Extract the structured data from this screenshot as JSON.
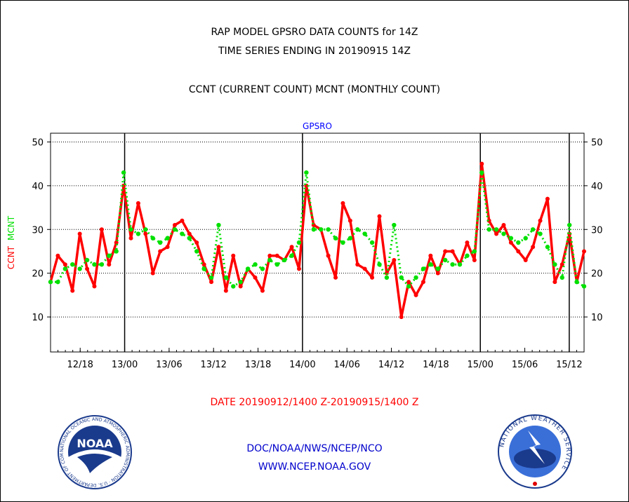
{
  "header": {
    "title_line1": "RAP MODEL GPSRO DATA COUNTS for 14Z",
    "title_line2": "TIME SERIES ENDING IN 20190915 14Z",
    "subtitle": "CCNT (CURRENT COUNT) MCNT (MONTHLY COUNT)"
  },
  "footer": {
    "date_range": "DATE 20190912/1400 Z-20190915/1400 Z",
    "org": "DOC/NOAA/NWS/NCEP/NCO",
    "url": "WWW.NCEP.NOAA.GOV"
  },
  "logos": {
    "left": {
      "icon": "noaa-logo",
      "text": "NOAA",
      "ring_text": "NATIONAL OCEANIC AND ATMOSPHERIC ADMINISTRATION · U.S. DEPARTMENT OF COMMERCE"
    },
    "right": {
      "icon": "nws-logo",
      "ring_text": "NATIONAL WEATHER SERVICE"
    }
  },
  "colors": {
    "ccnt": "#ff0000",
    "mcnt": "#00e000",
    "plot_title": "#0000ff",
    "footer_blue": "#0000cc",
    "date_red": "#ff0000"
  },
  "chart_data": {
    "type": "line",
    "title": "GPSRO",
    "ylabel_parts": [
      {
        "text": "CCNT",
        "series": "CCNT"
      },
      {
        "text": "MCNT",
        "series": "MCNT"
      }
    ],
    "ylim": [
      2,
      52
    ],
    "yticks": [
      10,
      20,
      30,
      40,
      50
    ],
    "grid": true,
    "xticks": [
      "12/18",
      "13/00",
      "13/06",
      "13/12",
      "13/18",
      "14/00",
      "14/06",
      "14/12",
      "14/18",
      "15/00",
      "15/06",
      "15/12"
    ],
    "xtick_hours": [
      4,
      10,
      16,
      22,
      28,
      34,
      40,
      46,
      52,
      58,
      64,
      70
    ],
    "day_boundaries_hours": [
      10,
      34,
      58,
      70
    ],
    "x_start_hour": 0,
    "x_end_hour": 72,
    "series": [
      {
        "name": "CCNT",
        "color": "#ff0000",
        "values": [
          18,
          24,
          22,
          16,
          29,
          21,
          17,
          30,
          22,
          27,
          40,
          28,
          36,
          29,
          20,
          25,
          26,
          31,
          32,
          29,
          27,
          22,
          18,
          26,
          16,
          24,
          17,
          21,
          19,
          16,
          24,
          24,
          23,
          26,
          21,
          40,
          31,
          30,
          24,
          19,
          36,
          32,
          22,
          21,
          19,
          33,
          20,
          23,
          10,
          18,
          15,
          18,
          24,
          20,
          25,
          25,
          22,
          27,
          23,
          45,
          32,
          29,
          31,
          27,
          25,
          23,
          26,
          32,
          37,
          18,
          22,
          29,
          18,
          25
        ]
      },
      {
        "name": "MCNT",
        "color": "#00e000",
        "values": [
          18,
          18,
          21,
          22,
          21,
          23,
          22,
          22,
          24,
          25,
          43,
          30,
          29,
          30,
          28,
          27,
          28,
          30,
          29,
          28,
          25,
          21,
          19,
          31,
          19,
          17,
          18,
          21,
          22,
          21,
          23,
          22,
          23,
          24,
          27,
          43,
          30,
          30,
          30,
          28,
          27,
          28,
          30,
          29,
          27,
          22,
          19,
          31,
          19,
          17,
          19,
          21,
          22,
          21,
          23,
          22,
          22,
          24,
          25,
          43,
          30,
          30,
          29,
          28,
          27,
          28,
          30,
          29,
          26,
          22,
          19,
          31,
          18,
          17
        ]
      }
    ]
  }
}
